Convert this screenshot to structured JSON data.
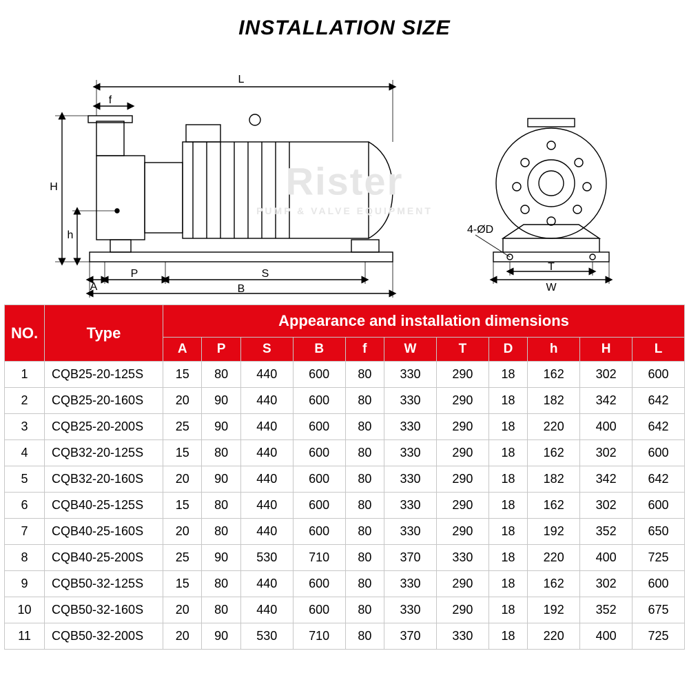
{
  "title": "INSTALLATION SIZE",
  "watermark_main": "Rister",
  "watermark_sub": "PUMP & VALVE EQUIPMENT",
  "diagram": {
    "labels": {
      "L": "L",
      "f": "f",
      "H": "H",
      "h": "h",
      "P": "P",
      "A": "A",
      "S": "S",
      "B": "B",
      "W": "W",
      "T": "T",
      "D": "4-ØD"
    },
    "stroke": "#000000",
    "stroke_width": 1.4,
    "hatch_color": "#000000",
    "dim_arrow_size": 6,
    "font_size": 16
  },
  "table": {
    "header_bg": "#e30613",
    "header_fg": "#ffffff",
    "border_color": "#c7c7c7",
    "col_no": "NO.",
    "col_type": "Type",
    "col_group": "Appearance and installation dimensions",
    "sub_cols": [
      "A",
      "P",
      "S",
      "B",
      "f",
      "W",
      "T",
      "D",
      "h",
      "H",
      "L"
    ],
    "rows": [
      {
        "no": 1,
        "type": "CQB25-20-125S",
        "v": [
          15,
          80,
          440,
          600,
          80,
          330,
          290,
          18,
          162,
          302,
          600
        ]
      },
      {
        "no": 2,
        "type": "CQB25-20-160S",
        "v": [
          20,
          90,
          440,
          600,
          80,
          330,
          290,
          18,
          182,
          342,
          642
        ]
      },
      {
        "no": 3,
        "type": "CQB25-20-200S",
        "v": [
          25,
          90,
          440,
          600,
          80,
          330,
          290,
          18,
          220,
          400,
          642
        ]
      },
      {
        "no": 4,
        "type": "CQB32-20-125S",
        "v": [
          15,
          80,
          440,
          600,
          80,
          330,
          290,
          18,
          162,
          302,
          600
        ]
      },
      {
        "no": 5,
        "type": "CQB32-20-160S",
        "v": [
          20,
          90,
          440,
          600,
          80,
          330,
          290,
          18,
          182,
          342,
          642
        ]
      },
      {
        "no": 6,
        "type": "CQB40-25-125S",
        "v": [
          15,
          80,
          440,
          600,
          80,
          330,
          290,
          18,
          162,
          302,
          600
        ]
      },
      {
        "no": 7,
        "type": "CQB40-25-160S",
        "v": [
          20,
          80,
          440,
          600,
          80,
          330,
          290,
          18,
          192,
          352,
          650
        ]
      },
      {
        "no": 8,
        "type": "CQB40-25-200S",
        "v": [
          25,
          90,
          530,
          710,
          80,
          370,
          330,
          18,
          220,
          400,
          725
        ]
      },
      {
        "no": 9,
        "type": "CQB50-32-125S",
        "v": [
          15,
          80,
          440,
          600,
          80,
          330,
          290,
          18,
          162,
          302,
          600
        ]
      },
      {
        "no": 10,
        "type": "CQB50-32-160S",
        "v": [
          20,
          80,
          440,
          600,
          80,
          330,
          290,
          18,
          192,
          352,
          675
        ]
      },
      {
        "no": 11,
        "type": "CQB50-32-200S",
        "v": [
          20,
          90,
          530,
          710,
          80,
          370,
          330,
          18,
          220,
          400,
          725
        ]
      }
    ]
  }
}
